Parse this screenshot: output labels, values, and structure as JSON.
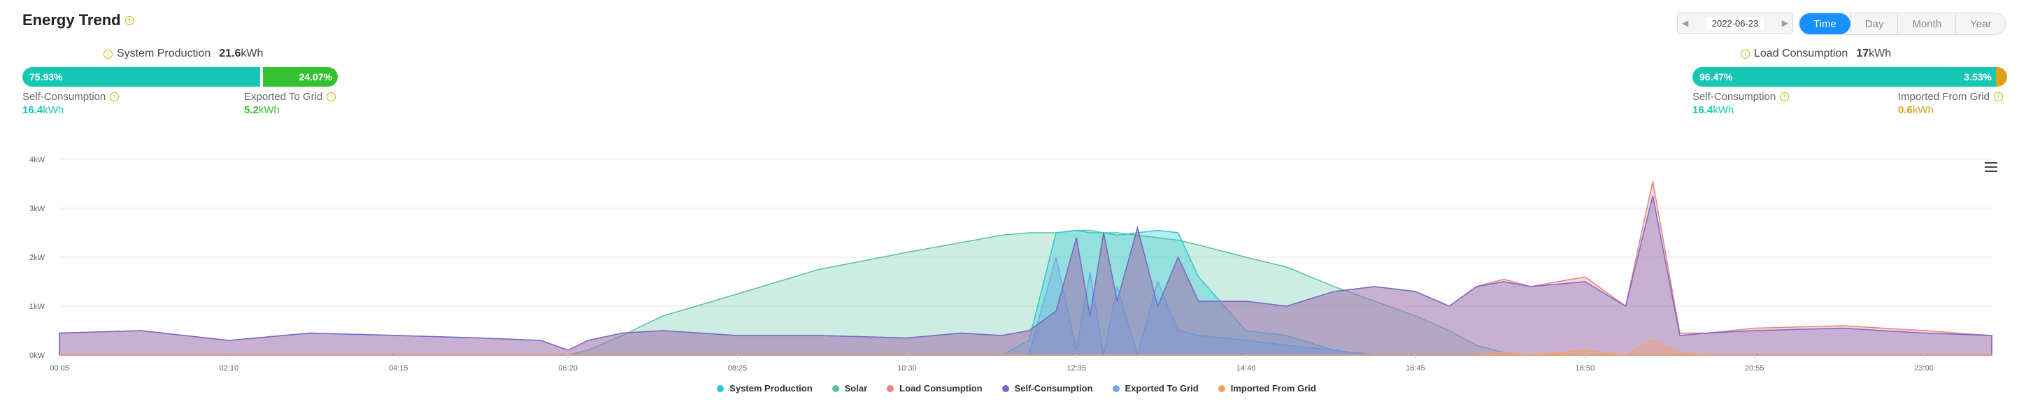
{
  "header": {
    "title": "Energy Trend"
  },
  "production": {
    "label": "System Production",
    "value": "21.6",
    "unit": "kWh",
    "self_pct_text": "75.93%",
    "self_pct": 75.93,
    "export_pct_text": "24.07%",
    "self_label": "Self-Consumption",
    "self_value": "16.4",
    "self_unit": "kWh",
    "export_label": "Exported To Grid",
    "export_value": "5.2",
    "export_unit": "kWh"
  },
  "consumption": {
    "label": "Load Consumption",
    "value": "17",
    "unit": "kWh",
    "self_pct_text": "96.47%",
    "self_pct": 96.47,
    "import_pct_text": "3.53%",
    "self_label": "Self-Consumption",
    "self_value": "16.4",
    "self_unit": "kWh",
    "import_label": "Imported From Grid",
    "import_value": "0.6",
    "import_unit": "kWh"
  },
  "controls": {
    "date": "2022-06-23",
    "tabs": [
      "Time",
      "Day",
      "Month",
      "Year"
    ],
    "active_tab": "Time"
  },
  "colors": {
    "system_production": "#28c9d6",
    "solar": "#5bc2a0",
    "load_consumption": "#f08080",
    "self_consumption": "#6e6ccf",
    "exported": "#6fa8e6",
    "imported": "#f4a261",
    "teal_bar": "#16c7b6",
    "green_bar": "#34c231",
    "gold_bar": "#d9a414",
    "accent": "#1890ff"
  },
  "chart_data": {
    "type": "area",
    "x": [
      "00:05",
      "01:05",
      "02:10",
      "03:10",
      "04:15",
      "05:15",
      "06:00",
      "06:20",
      "06:35",
      "07:00",
      "07:30",
      "08:25",
      "09:25",
      "10:30",
      "11:10",
      "11:40",
      "12:00",
      "12:20",
      "12:35",
      "12:45",
      "12:55",
      "13:05",
      "13:20",
      "13:35",
      "13:50",
      "14:05",
      "14:40",
      "15:10",
      "15:45",
      "16:15",
      "16:45",
      "17:10",
      "17:30",
      "17:50",
      "18:10",
      "18:50",
      "19:20",
      "19:40",
      "20:00",
      "20:20",
      "20:55",
      "22:00",
      "23:00",
      "23:50"
    ],
    "series": [
      {
        "name": "System Production",
        "values": [
          0,
          0,
          0,
          0,
          0,
          0,
          0,
          0,
          0,
          0,
          0,
          0,
          0,
          0,
          0,
          0,
          0.3,
          2.5,
          2.55,
          2.5,
          2.5,
          2.45,
          2.5,
          2.55,
          2.5,
          1.6,
          0.5,
          0.4,
          0.1,
          0,
          0,
          0,
          0,
          0,
          0,
          0,
          0,
          0,
          0,
          0,
          0,
          0,
          0,
          0
        ]
      },
      {
        "name": "Solar",
        "values": [
          0,
          0,
          0,
          0,
          0,
          0,
          0,
          0,
          0.1,
          0.4,
          0.8,
          1.25,
          1.75,
          2.1,
          2.3,
          2.45,
          2.5,
          2.5,
          2.55,
          2.55,
          2.5,
          2.5,
          2.45,
          2.4,
          2.35,
          2.25,
          2.0,
          1.8,
          1.4,
          1.1,
          0.8,
          0.5,
          0.2,
          0.05,
          0,
          0,
          0,
          0,
          0,
          0,
          0,
          0,
          0,
          0
        ]
      },
      {
        "name": "Load Consumption",
        "values": [
          0.45,
          0.5,
          0.3,
          0.45,
          0.4,
          0.35,
          0.3,
          0.1,
          0.3,
          0.45,
          0.5,
          0.4,
          0.4,
          0.35,
          0.45,
          0.4,
          0.5,
          0.9,
          2.4,
          0.8,
          2.5,
          1.1,
          2.6,
          1.0,
          2.0,
          1.1,
          1.1,
          1.0,
          1.3,
          1.4,
          1.3,
          1.0,
          1.4,
          1.55,
          1.4,
          1.6,
          1.0,
          3.55,
          0.45,
          0.45,
          0.55,
          0.6,
          0.5,
          0.4
        ]
      },
      {
        "name": "Self-Consumption",
        "values": [
          0.45,
          0.5,
          0.3,
          0.45,
          0.4,
          0.35,
          0.3,
          0.1,
          0.3,
          0.45,
          0.5,
          0.4,
          0.4,
          0.35,
          0.45,
          0.4,
          0.5,
          0.9,
          2.4,
          0.8,
          2.5,
          1.1,
          2.6,
          1.0,
          2.0,
          1.1,
          1.1,
          1.0,
          1.3,
          1.4,
          1.3,
          1.0,
          1.4,
          1.5,
          1.4,
          1.5,
          1.0,
          3.25,
          0.4,
          0.45,
          0.5,
          0.55,
          0.45,
          0.4
        ]
      },
      {
        "name": "Exported To Grid",
        "values": [
          0,
          0,
          0,
          0,
          0,
          0,
          0,
          0,
          0,
          0,
          0,
          0,
          0,
          0,
          0,
          0,
          0,
          2.0,
          0.1,
          1.7,
          0,
          1.4,
          0,
          1.5,
          0.5,
          0.4,
          0.3,
          0.2,
          0.1,
          0,
          0,
          0,
          0,
          0,
          0,
          0,
          0,
          0,
          0,
          0,
          0,
          0,
          0,
          0
        ]
      },
      {
        "name": "Imported From Grid",
        "values": [
          0,
          0,
          0,
          0,
          0,
          0,
          0,
          0,
          0,
          0,
          0,
          0,
          0,
          0,
          0,
          0,
          0,
          0,
          0,
          0,
          0,
          0,
          0,
          0,
          0,
          0,
          0,
          0,
          0,
          0,
          0,
          0,
          0,
          0.05,
          0,
          0.1,
          0,
          0.3,
          0.05,
          0,
          0,
          0,
          0,
          0
        ]
      }
    ],
    "yticks": [
      "0kW",
      "1kW",
      "2kW",
      "3kW",
      "4kW"
    ],
    "ylim": [
      0,
      4
    ],
    "xticks": [
      "00:05",
      "02:10",
      "04:15",
      "06:20",
      "08:25",
      "10:30",
      "12:35",
      "14:40",
      "16:45",
      "18:50",
      "20:55",
      "23:00"
    ],
    "legend_position": "bottom"
  }
}
